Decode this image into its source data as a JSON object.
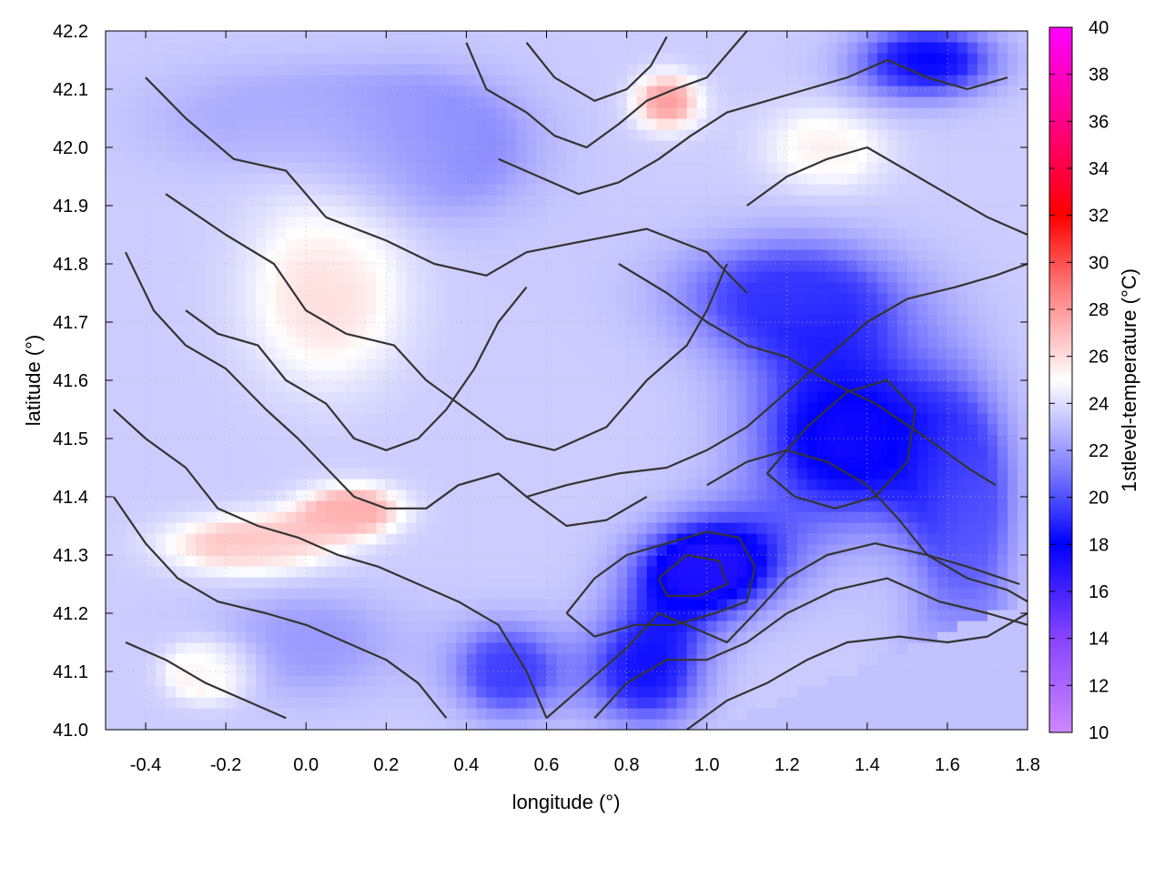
{
  "chart_data": {
    "type": "heatmap",
    "xlabel": "longitude (°)",
    "ylabel": "latitude (°)",
    "colorbar_label": "1stlevel-temperature (°C)",
    "xlim": [
      -0.5,
      1.8
    ],
    "ylim": [
      41.0,
      42.2
    ],
    "x_ticks": [
      -0.4,
      -0.2,
      0.0,
      0.2,
      0.4,
      0.6,
      0.8,
      1.0,
      1.2,
      1.4,
      1.6,
      1.8
    ],
    "x_tick_labels": [
      "-0.4",
      "-0.2",
      "0.0",
      "0.2",
      "0.4",
      "0.6",
      "0.8",
      "1.0",
      "1.2",
      "1.4",
      "1.6",
      "1.8"
    ],
    "y_ticks": [
      41.0,
      41.1,
      41.2,
      41.3,
      41.4,
      41.5,
      41.6,
      41.7,
      41.8,
      41.9,
      42.0,
      42.1,
      42.2
    ],
    "y_tick_labels": [
      "41.0",
      "41.1",
      "41.2",
      "41.3",
      "41.4",
      "41.5",
      "41.6",
      "41.7",
      "41.8",
      "41.9",
      "42.0",
      "42.1",
      "42.2"
    ],
    "colorbar_range": [
      10,
      40
    ],
    "colorbar_ticks": [
      10,
      12,
      14,
      16,
      18,
      20,
      22,
      24,
      26,
      28,
      30,
      32,
      34,
      36,
      38,
      40
    ],
    "colorbar_tick_labels": [
      "10",
      "12",
      "14",
      "16",
      "18",
      "20",
      "22",
      "24",
      "26",
      "28",
      "30",
      "32",
      "34",
      "36",
      "38",
      "40"
    ],
    "colorbar_stops": [
      {
        "value": 10,
        "color": "#cc88ff"
      },
      {
        "value": 14,
        "color": "#8844ff"
      },
      {
        "value": 18,
        "color": "#0000ff"
      },
      {
        "value": 21,
        "color": "#7777ff"
      },
      {
        "value": 25,
        "color": "#ffffff"
      },
      {
        "value": 29,
        "color": "#ff7777"
      },
      {
        "value": 32,
        "color": "#ff0000"
      },
      {
        "value": 36,
        "color": "#ff0088"
      },
      {
        "value": 40,
        "color": "#ff00ff"
      }
    ],
    "grid": true,
    "temperature_blobs": [
      {
        "lon": 1.35,
        "lat": 41.5,
        "rlon": 0.3,
        "rlat": 0.18,
        "temp": 17.5
      },
      {
        "lon": 1.0,
        "lat": 41.28,
        "rlon": 0.22,
        "rlat": 0.1,
        "temp": 17.0
      },
      {
        "lon": 0.85,
        "lat": 41.1,
        "rlon": 0.18,
        "rlat": 0.12,
        "temp": 18.5
      },
      {
        "lon": 1.2,
        "lat": 41.75,
        "rlon": 0.35,
        "rlat": 0.12,
        "temp": 19.5
      },
      {
        "lon": 1.55,
        "lat": 42.15,
        "rlon": 0.22,
        "rlat": 0.08,
        "temp": 18.0
      },
      {
        "lon": 0.5,
        "lat": 41.1,
        "rlon": 0.15,
        "rlat": 0.1,
        "temp": 19.5
      },
      {
        "lon": 1.65,
        "lat": 41.35,
        "rlon": 0.15,
        "rlat": 0.25,
        "temp": 20.5
      },
      {
        "lon": 0.35,
        "lat": 42.0,
        "rlon": 0.3,
        "rlat": 0.15,
        "temp": 21.5
      },
      {
        "lon": -0.1,
        "lat": 42.05,
        "rlon": 0.4,
        "rlat": 0.12,
        "temp": 22.5
      },
      {
        "lon": 0.0,
        "lat": 41.15,
        "rlon": 0.3,
        "rlat": 0.12,
        "temp": 22.0
      },
      {
        "lon": 0.05,
        "lat": 41.75,
        "rlon": 0.25,
        "rlat": 0.2,
        "temp": 26.0
      },
      {
        "lon": 0.12,
        "lat": 41.38,
        "rlon": 0.15,
        "rlat": 0.05,
        "temp": 27.5
      },
      {
        "lon": -0.15,
        "lat": 41.32,
        "rlon": 0.25,
        "rlat": 0.06,
        "temp": 27.0
      },
      {
        "lon": 0.9,
        "lat": 42.08,
        "rlon": 0.1,
        "rlat": 0.06,
        "temp": 28.0
      },
      {
        "lon": -0.25,
        "lat": 41.1,
        "rlon": 0.12,
        "rlat": 0.06,
        "temp": 26.5
      },
      {
        "lon": 1.3,
        "lat": 42.0,
        "rlon": 0.2,
        "rlat": 0.1,
        "temp": 25.5
      },
      {
        "lon": 1.6,
        "lat": 41.1,
        "rlon": 0.25,
        "rlat": 0.1,
        "temp": 23.5
      }
    ],
    "contours": [
      [
        [
          -0.4,
          42.12
        ],
        [
          -0.3,
          42.05
        ],
        [
          -0.18,
          41.98
        ],
        [
          -0.05,
          41.96
        ],
        [
          0.05,
          41.88
        ],
        [
          0.2,
          41.84
        ],
        [
          0.32,
          41.8
        ],
        [
          0.45,
          41.78
        ],
        [
          0.55,
          41.82
        ],
        [
          0.7,
          41.84
        ],
        [
          0.85,
          41.86
        ],
        [
          1.0,
          41.82
        ],
        [
          1.1,
          41.75
        ]
      ],
      [
        [
          -0.35,
          41.92
        ],
        [
          -0.2,
          41.85
        ],
        [
          -0.08,
          41.8
        ],
        [
          0.0,
          41.72
        ],
        [
          0.1,
          41.68
        ],
        [
          0.22,
          41.66
        ],
        [
          0.3,
          41.6
        ],
        [
          0.4,
          41.55
        ],
        [
          0.5,
          41.5
        ],
        [
          0.62,
          41.48
        ],
        [
          0.75,
          41.52
        ],
        [
          0.85,
          41.6
        ],
        [
          0.95,
          41.66
        ],
        [
          1.0,
          41.72
        ],
        [
          1.05,
          41.8
        ]
      ],
      [
        [
          -0.45,
          41.82
        ],
        [
          -0.38,
          41.72
        ],
        [
          -0.3,
          41.66
        ],
        [
          -0.2,
          41.62
        ],
        [
          -0.1,
          41.55
        ],
        [
          -0.02,
          41.5
        ],
        [
          0.05,
          41.45
        ],
        [
          0.12,
          41.4
        ],
        [
          0.2,
          41.38
        ],
        [
          0.3,
          41.38
        ],
        [
          0.38,
          41.42
        ],
        [
          0.48,
          41.44
        ],
        [
          0.55,
          41.4
        ],
        [
          0.65,
          41.35
        ],
        [
          0.75,
          41.36
        ],
        [
          0.85,
          41.4
        ]
      ],
      [
        [
          -0.48,
          41.55
        ],
        [
          -0.4,
          41.5
        ],
        [
          -0.3,
          41.45
        ],
        [
          -0.22,
          41.38
        ],
        [
          -0.12,
          41.35
        ],
        [
          -0.02,
          41.33
        ],
        [
          0.08,
          41.3
        ],
        [
          0.18,
          41.28
        ],
        [
          0.28,
          41.25
        ],
        [
          0.38,
          41.22
        ],
        [
          0.48,
          41.18
        ],
        [
          0.55,
          41.1
        ],
        [
          0.6,
          41.02
        ]
      ],
      [
        [
          -0.48,
          41.4
        ],
        [
          -0.4,
          41.32
        ],
        [
          -0.32,
          41.26
        ],
        [
          -0.22,
          41.22
        ],
        [
          -0.1,
          41.2
        ],
        [
          0.0,
          41.18
        ],
        [
          0.1,
          41.15
        ],
        [
          0.2,
          41.12
        ],
        [
          0.28,
          41.08
        ],
        [
          0.35,
          41.02
        ]
      ],
      [
        [
          -0.45,
          41.15
        ],
        [
          -0.35,
          41.12
        ],
        [
          -0.25,
          41.08
        ],
        [
          -0.15,
          41.05
        ],
        [
          -0.05,
          41.02
        ]
      ],
      [
        [
          0.65,
          41.2
        ],
        [
          0.72,
          41.26
        ],
        [
          0.8,
          41.3
        ],
        [
          0.9,
          41.32
        ],
        [
          1.0,
          41.34
        ],
        [
          1.08,
          41.33
        ],
        [
          1.12,
          41.28
        ],
        [
          1.1,
          41.22
        ],
        [
          1.02,
          41.2
        ],
        [
          0.92,
          41.18
        ],
        [
          0.82,
          41.18
        ],
        [
          0.72,
          41.16
        ],
        [
          0.65,
          41.2
        ]
      ],
      [
        [
          0.88,
          41.26
        ],
        [
          0.95,
          41.3
        ],
        [
          1.03,
          41.29
        ],
        [
          1.05,
          41.25
        ],
        [
          0.98,
          41.23
        ],
        [
          0.9,
          41.23
        ],
        [
          0.88,
          41.26
        ]
      ],
      [
        [
          0.55,
          41.4
        ],
        [
          0.65,
          41.42
        ],
        [
          0.78,
          41.44
        ],
        [
          0.9,
          41.45
        ],
        [
          1.0,
          41.48
        ],
        [
          1.1,
          41.52
        ],
        [
          1.2,
          41.58
        ],
        [
          1.3,
          41.64
        ],
        [
          1.4,
          41.7
        ],
        [
          1.5,
          41.74
        ],
        [
          1.62,
          41.76
        ],
        [
          1.72,
          41.78
        ],
        [
          1.8,
          41.8
        ]
      ],
      [
        [
          1.0,
          41.42
        ],
        [
          1.1,
          41.46
        ],
        [
          1.2,
          41.48
        ],
        [
          1.3,
          41.46
        ],
        [
          1.4,
          41.42
        ],
        [
          1.48,
          41.36
        ],
        [
          1.55,
          41.3
        ],
        [
          1.65,
          41.26
        ],
        [
          1.75,
          41.24
        ],
        [
          1.8,
          41.22
        ]
      ],
      [
        [
          1.15,
          41.44
        ],
        [
          1.25,
          41.52
        ],
        [
          1.35,
          41.58
        ],
        [
          1.45,
          41.6
        ],
        [
          1.52,
          41.55
        ],
        [
          1.5,
          41.46
        ],
        [
          1.42,
          41.4
        ],
        [
          1.32,
          41.38
        ],
        [
          1.22,
          41.4
        ],
        [
          1.15,
          41.44
        ]
      ],
      [
        [
          0.6,
          41.02
        ],
        [
          0.7,
          41.08
        ],
        [
          0.8,
          41.14
        ],
        [
          0.88,
          41.2
        ],
        [
          0.95,
          41.18
        ],
        [
          1.05,
          41.15
        ],
        [
          1.12,
          41.2
        ],
        [
          1.2,
          41.26
        ],
        [
          1.3,
          41.3
        ],
        [
          1.42,
          41.32
        ],
        [
          1.55,
          41.3
        ],
        [
          1.65,
          41.28
        ],
        [
          1.78,
          41.25
        ]
      ],
      [
        [
          0.72,
          41.02
        ],
        [
          0.8,
          41.08
        ],
        [
          0.9,
          41.12
        ],
        [
          1.0,
          41.12
        ],
        [
          1.1,
          41.15
        ],
        [
          1.2,
          41.2
        ],
        [
          1.32,
          41.24
        ],
        [
          1.45,
          41.26
        ],
        [
          1.58,
          41.22
        ],
        [
          1.7,
          41.2
        ],
        [
          1.8,
          41.18
        ]
      ],
      [
        [
          0.95,
          41.0
        ],
        [
          1.05,
          41.05
        ],
        [
          1.15,
          41.08
        ],
        [
          1.25,
          41.12
        ],
        [
          1.35,
          41.15
        ],
        [
          1.48,
          41.16
        ],
        [
          1.6,
          41.15
        ],
        [
          1.7,
          41.16
        ],
        [
          1.8,
          41.2
        ]
      ],
      [
        [
          0.4,
          42.18
        ],
        [
          0.45,
          42.1
        ],
        [
          0.55,
          42.06
        ],
        [
          0.62,
          42.02
        ],
        [
          0.7,
          42.0
        ],
        [
          0.78,
          42.04
        ],
        [
          0.85,
          42.08
        ],
        [
          0.92,
          42.1
        ],
        [
          1.0,
          42.12
        ],
        [
          1.05,
          42.16
        ],
        [
          1.1,
          42.2
        ]
      ],
      [
        [
          0.55,
          42.18
        ],
        [
          0.62,
          42.12
        ],
        [
          0.72,
          42.08
        ],
        [
          0.8,
          42.1
        ],
        [
          0.86,
          42.14
        ],
        [
          0.9,
          42.19
        ]
      ],
      [
        [
          0.48,
          41.98
        ],
        [
          0.58,
          41.95
        ],
        [
          0.68,
          41.92
        ],
        [
          0.78,
          41.94
        ],
        [
          0.88,
          41.98
        ],
        [
          0.96,
          42.02
        ],
        [
          1.05,
          42.06
        ],
        [
          1.15,
          42.08
        ],
        [
          1.25,
          42.1
        ],
        [
          1.35,
          42.12
        ],
        [
          1.45,
          42.15
        ],
        [
          1.55,
          42.12
        ],
        [
          1.65,
          42.1
        ],
        [
          1.75,
          42.12
        ]
      ],
      [
        [
          1.1,
          41.9
        ],
        [
          1.2,
          41.95
        ],
        [
          1.3,
          41.98
        ],
        [
          1.4,
          42.0
        ],
        [
          1.5,
          41.96
        ],
        [
          1.6,
          41.92
        ],
        [
          1.7,
          41.88
        ],
        [
          1.8,
          41.85
        ]
      ],
      [
        [
          -0.3,
          41.72
        ],
        [
          -0.22,
          41.68
        ],
        [
          -0.12,
          41.66
        ],
        [
          -0.05,
          41.6
        ],
        [
          0.05,
          41.56
        ],
        [
          0.12,
          41.5
        ],
        [
          0.2,
          41.48
        ],
        [
          0.28,
          41.5
        ],
        [
          0.35,
          41.55
        ],
        [
          0.42,
          41.62
        ],
        [
          0.48,
          41.7
        ],
        [
          0.55,
          41.76
        ]
      ],
      [
        [
          0.78,
          41.8
        ],
        [
          0.9,
          41.75
        ],
        [
          1.0,
          41.7
        ],
        [
          1.1,
          41.66
        ],
        [
          1.2,
          41.64
        ],
        [
          1.3,
          41.6
        ],
        [
          1.42,
          41.56
        ],
        [
          1.55,
          41.5
        ],
        [
          1.65,
          41.45
        ],
        [
          1.72,
          41.42
        ]
      ]
    ]
  }
}
